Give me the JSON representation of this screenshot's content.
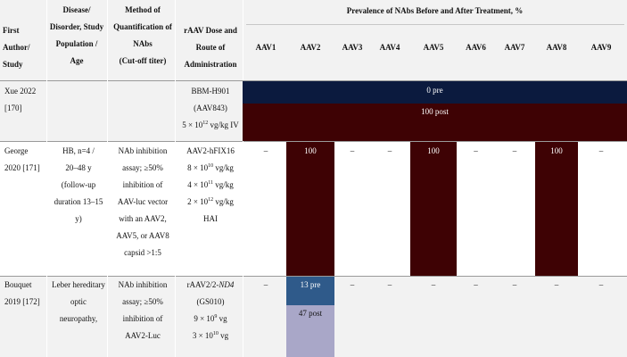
{
  "header": {
    "col1": [
      "First",
      "Author/",
      "Study"
    ],
    "col2": [
      "Disease/",
      "Disorder, Study",
      "Population /",
      "Age"
    ],
    "col3": [
      "Method of",
      "Quantification of",
      "NAbs",
      "(Cut-off titer)"
    ],
    "col4": [
      "rAAV Dose and",
      "Route of",
      "Administration"
    ],
    "span_title": "Prevalence of NAbs Before and After Treatment, %",
    "serotypes": [
      "AAV1",
      "AAV2",
      "AAV3",
      "AAV4",
      "AAV5",
      "AAV6",
      "AAV7",
      "AAV8",
      "AAV9"
    ]
  },
  "rows": [
    {
      "author": [
        "Xue 2022",
        "[170]"
      ],
      "dose_lines": [
        "BBM-H901",
        "(AAV843)"
      ],
      "dose_formula": {
        "base": "5 × 10",
        "exp": "12",
        "unit": " vg/kg IV"
      },
      "pre_label": "0 pre",
      "post_label": "100 post"
    },
    {
      "author": [
        "George",
        "2020 [171]"
      ],
      "disease": [
        "HB, n=4 /",
        "20–48 y",
        "(follow-up",
        "duration 13–15",
        "y)"
      ],
      "method": [
        "NAb inhibition",
        "assay; ≥50%",
        "inhibition of",
        "AAV-luc vector",
        "with an AAV2,",
        "AAV5, or AAV8",
        "capsid >1:5"
      ],
      "dose_title": "AAV2-hFIX16",
      "dose_formulas": [
        {
          "base": "8 × 10",
          "exp": "10",
          "unit": " vg/kg"
        },
        {
          "base": "4 × 10",
          "exp": "11",
          "unit": " vg/kg"
        },
        {
          "base": "2 × 10",
          "exp": "12",
          "unit": " vg/kg"
        }
      ],
      "dose_route": "HAI",
      "values": [
        "–",
        "100",
        "–",
        "–",
        "100",
        "–",
        "–",
        "100",
        "–"
      ]
    },
    {
      "author": [
        "Bouquet",
        "2019 [172]"
      ],
      "disease": [
        "Leber hereditary",
        "optic",
        "neuropathy,"
      ],
      "method": [
        "NAb inhibition",
        "assay; ≥50%",
        "inhibition of",
        "AAV2-Luc"
      ],
      "dose_title_plain": "rAAV2/2-",
      "dose_title_italic": "ND4",
      "dose_code": "(GS010)",
      "dose_formulas": [
        {
          "base": "9 × 10",
          "exp": "9",
          "unit": " vg"
        },
        {
          "base": "3 × 10",
          "exp": "10",
          "unit": " vg"
        }
      ],
      "aav2_pre": "13 pre",
      "aav2_post": "47 post",
      "values": [
        "–",
        "",
        "–",
        "–",
        "–",
        "–",
        "–",
        "–",
        "–"
      ]
    }
  ],
  "colors": {
    "navy": "#0b1a3e",
    "maroon": "#3e0204",
    "blue": "#2f5a8a",
    "lavender": "#a9a7c8",
    "header_bg": "#f2f2f2",
    "row_gray": "#f2f2f2"
  }
}
